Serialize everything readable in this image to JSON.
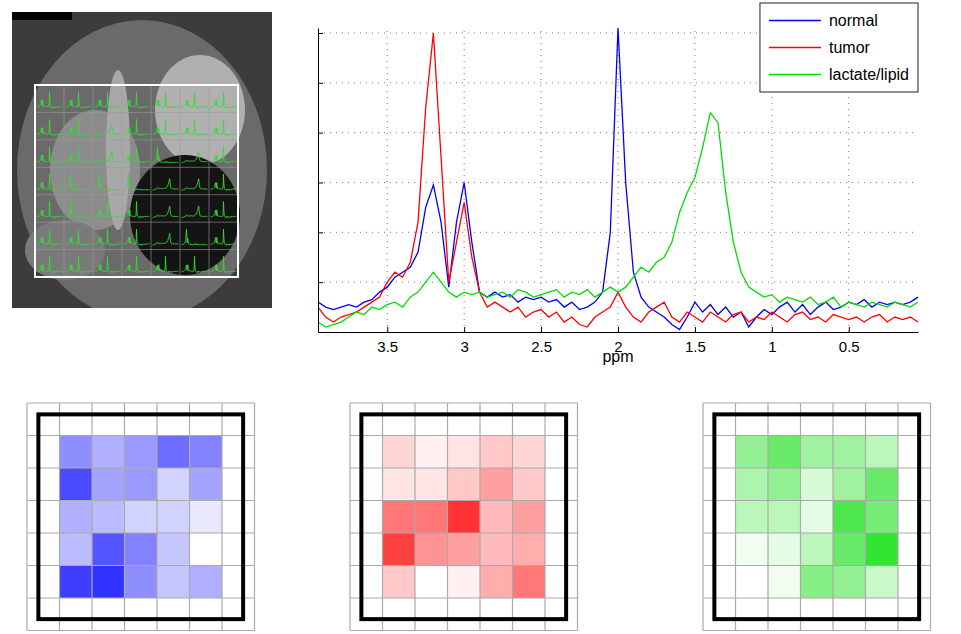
{
  "chart_data": [
    {
      "type": "line",
      "xlabel": "ppm",
      "x": [
        3.95,
        3.9,
        3.85,
        3.8,
        3.75,
        3.7,
        3.65,
        3.6,
        3.55,
        3.5,
        3.45,
        3.4,
        3.35,
        3.3,
        3.25,
        3.2,
        3.15,
        3.1,
        3.05,
        3.0,
        2.95,
        2.9,
        2.85,
        2.8,
        2.75,
        2.7,
        2.65,
        2.6,
        2.55,
        2.5,
        2.45,
        2.4,
        2.35,
        2.3,
        2.25,
        2.2,
        2.15,
        2.1,
        2.05,
        2.0,
        1.95,
        1.9,
        1.85,
        1.8,
        1.75,
        1.7,
        1.65,
        1.6,
        1.55,
        1.5,
        1.45,
        1.4,
        1.35,
        1.3,
        1.25,
        1.2,
        1.15,
        1.1,
        1.05,
        1.0,
        0.95,
        0.9,
        0.85,
        0.8,
        0.75,
        0.7,
        0.65,
        0.6,
        0.55,
        0.5,
        0.45,
        0.4,
        0.35,
        0.3,
        0.25,
        0.2,
        0.15,
        0.1,
        0.05
      ],
      "series": [
        {
          "name": "normal",
          "color": "#0000ff",
          "values": [
            0.6,
            0.5,
            0.45,
            0.5,
            0.55,
            0.5,
            0.6,
            0.65,
            0.8,
            0.9,
            1.1,
            1.2,
            1.3,
            1.6,
            2.5,
            2.95,
            2.2,
            0.9,
            2.2,
            3.0,
            1.8,
            0.8,
            0.7,
            0.8,
            0.7,
            0.75,
            0.6,
            0.7,
            0.65,
            0.7,
            0.6,
            0.65,
            0.5,
            0.6,
            0.45,
            0.5,
            0.6,
            0.8,
            2.0,
            6.1,
            3.0,
            1.2,
            0.7,
            0.5,
            0.4,
            0.3,
            0.15,
            0.05,
            0.3,
            0.6,
            0.4,
            0.55,
            0.35,
            0.5,
            0.3,
            0.4,
            0.1,
            0.3,
            0.45,
            0.35,
            0.5,
            0.6,
            0.4,
            0.55,
            0.35,
            0.5,
            0.6,
            0.45,
            0.5,
            0.6,
            0.55,
            0.65,
            0.5,
            0.6,
            0.55,
            0.6,
            0.55,
            0.6,
            0.7
          ]
        },
        {
          "name": "tumor",
          "color": "#ff0000",
          "values": [
            0.5,
            0.3,
            0.2,
            0.3,
            0.35,
            0.4,
            0.5,
            0.6,
            0.7,
            1.0,
            1.2,
            1.1,
            1.4,
            2.2,
            4.5,
            6.0,
            3.5,
            1.0,
            1.8,
            2.6,
            1.5,
            0.8,
            0.5,
            0.6,
            0.5,
            0.4,
            0.5,
            0.3,
            0.4,
            0.45,
            0.3,
            0.4,
            0.2,
            0.3,
            0.15,
            0.1,
            0.3,
            0.4,
            0.5,
            0.8,
            0.5,
            0.3,
            0.2,
            0.4,
            0.5,
            0.6,
            0.3,
            0.2,
            0.4,
            0.3,
            0.2,
            0.4,
            0.3,
            0.2,
            0.35,
            0.4,
            0.2,
            0.3,
            0.25,
            0.4,
            0.3,
            0.2,
            0.35,
            0.4,
            0.25,
            0.3,
            0.2,
            0.35,
            0.3,
            0.25,
            0.3,
            0.2,
            0.3,
            0.35,
            0.2,
            0.3,
            0.25,
            0.3,
            0.2
          ]
        },
        {
          "name": "lactate/lipid",
          "color": "#00dd00",
          "values": [
            0.2,
            0.1,
            0.15,
            0.2,
            0.3,
            0.4,
            0.35,
            0.5,
            0.45,
            0.55,
            0.6,
            0.5,
            0.7,
            0.8,
            1.0,
            1.2,
            1.0,
            0.8,
            0.7,
            0.8,
            0.75,
            0.8,
            0.7,
            0.75,
            0.8,
            0.7,
            0.85,
            0.8,
            0.7,
            0.75,
            0.8,
            0.85,
            0.7,
            0.8,
            0.75,
            0.85,
            0.7,
            0.8,
            0.9,
            0.8,
            0.9,
            1.1,
            1.3,
            1.2,
            1.4,
            1.5,
            1.8,
            2.4,
            2.8,
            3.1,
            3.7,
            4.4,
            4.2,
            2.8,
            1.8,
            1.2,
            0.9,
            0.8,
            0.7,
            0.75,
            0.6,
            0.7,
            0.65,
            0.6,
            0.7,
            0.55,
            0.6,
            0.7,
            0.5,
            0.6,
            0.55,
            0.5,
            0.6,
            0.55,
            0.5,
            0.6,
            0.55,
            0.5,
            0.6
          ]
        }
      ],
      "xlim": [
        3.95,
        0.05
      ],
      "xticks": [
        3.5,
        3,
        2.5,
        2,
        1.5,
        1,
        0.5
      ],
      "ylim": [
        0,
        6.1
      ],
      "yticks": [
        1,
        2,
        3,
        4,
        5,
        6
      ],
      "grid": true,
      "legend": "upper right",
      "tick_labels": "x"
    },
    {
      "type": "heatmap",
      "color": "#0000ff",
      "cells": [
        [
          0.5,
          0.35,
          0.45,
          0.65,
          0.55
        ],
        [
          0.8,
          0.4,
          0.45,
          0.2,
          0.4
        ],
        [
          0.35,
          0.3,
          0.2,
          0.2,
          0.1
        ],
        [
          0.3,
          0.75,
          0.55,
          0.25,
          0.0
        ],
        [
          0.85,
          0.9,
          0.5,
          0.25,
          0.35
        ]
      ]
    },
    {
      "type": "heatmap",
      "color": "#ff0000",
      "cells": [
        [
          0.25,
          0.15,
          0.2,
          0.3,
          0.25
        ],
        [
          0.2,
          0.2,
          0.3,
          0.45,
          0.3
        ],
        [
          0.6,
          0.6,
          0.85,
          0.35,
          0.45
        ],
        [
          0.8,
          0.5,
          0.45,
          0.35,
          0.4
        ],
        [
          0.3,
          0.1,
          0.15,
          0.4,
          0.6
        ]
      ]
    },
    {
      "type": "heatmap",
      "color": "#00dd00",
      "cells": [
        [
          0.45,
          0.6,
          0.4,
          0.4,
          0.3
        ],
        [
          0.35,
          0.45,
          0.2,
          0.4,
          0.6
        ],
        [
          0.3,
          0.3,
          0.15,
          0.7,
          0.55
        ],
        [
          0.1,
          0.15,
          0.3,
          0.6,
          0.8
        ],
        [
          0.05,
          0.1,
          0.5,
          0.45,
          0.25
        ]
      ]
    }
  ]
}
